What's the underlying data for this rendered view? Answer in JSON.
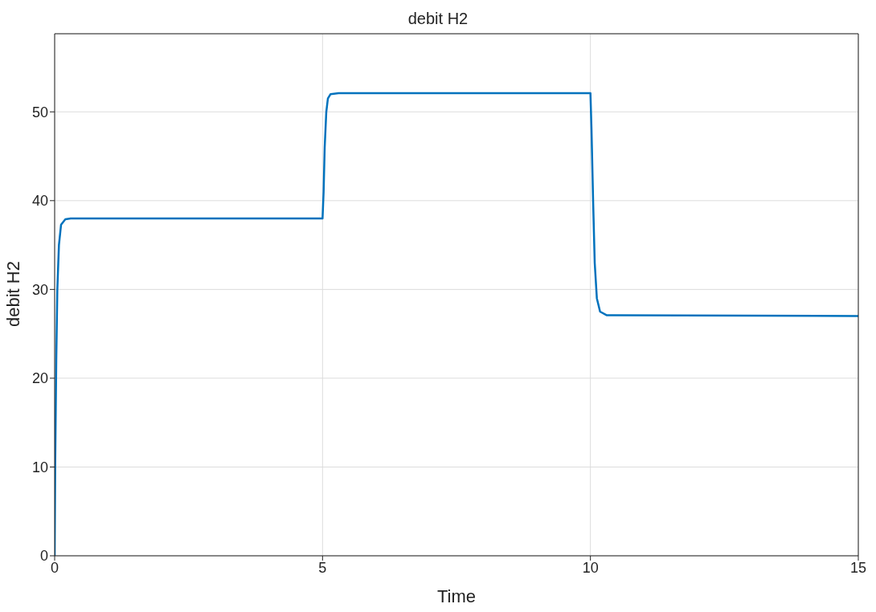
{
  "chart_data": {
    "type": "line",
    "title": "debit H2",
    "xlabel": "Time",
    "ylabel": "debit H2",
    "x": [
      0,
      0.01,
      0.03,
      0.05,
      0.08,
      0.12,
      0.2,
      0.3,
      5.0,
      5.02,
      5.04,
      5.07,
      5.1,
      5.15,
      5.3,
      10.0,
      10.02,
      10.05,
      10.08,
      10.12,
      10.18,
      10.3,
      15
    ],
    "series": [
      {
        "color": "#0072bd",
        "values": [
          0,
          10,
          22,
          30,
          35,
          37.3,
          37.9,
          38,
          38,
          41,
          46,
          50,
          51.5,
          52,
          52.1,
          52.1,
          48,
          40,
          33,
          29,
          27.5,
          27.1,
          27
        ]
      }
    ],
    "xlim": [
      0,
      15
    ],
    "xticks": [
      0,
      5,
      10,
      15
    ],
    "ylim": [
      0,
      58.8
    ],
    "yticks": [
      0,
      10,
      20,
      30,
      40,
      50
    ],
    "grid": true,
    "legend": false,
    "marker": "none",
    "line_style": "solid"
  }
}
